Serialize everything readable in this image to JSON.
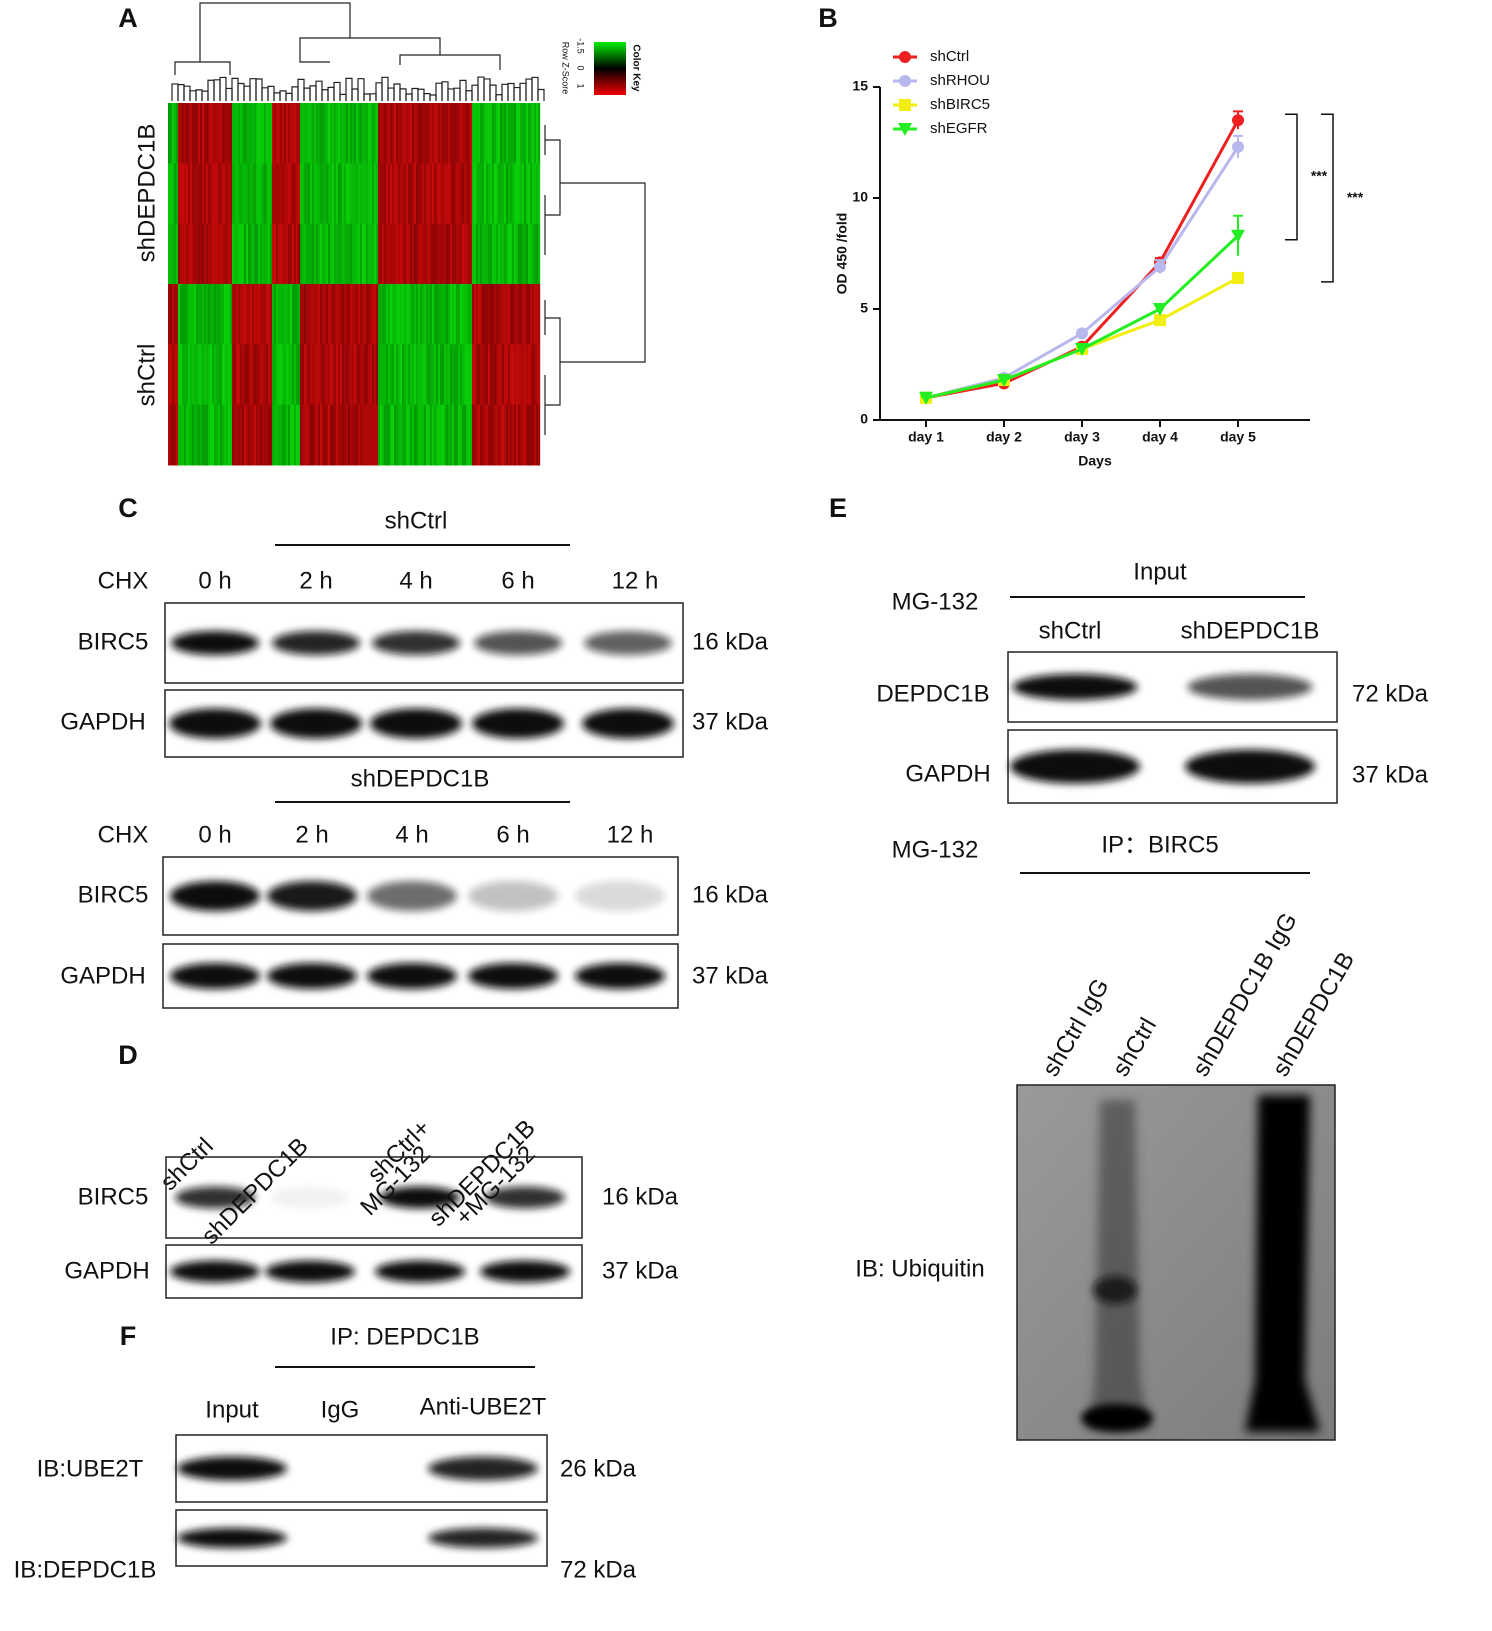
{
  "panel_labels": [
    "A",
    "B",
    "C",
    "D",
    "E",
    "F"
  ],
  "heatmap": {
    "rows": [
      "shDEPDC1B",
      "shCtrl"
    ],
    "color_key": {
      "title": "Color Key",
      "axis_label": "Row Z-Score",
      "ticks": [
        "-1.5",
        "0",
        "1"
      ]
    }
  },
  "chart_data": {
    "type": "line",
    "categories": [
      "day 1",
      "day 2",
      "day 3",
      "day 4",
      "day 5"
    ],
    "x_label": "Days",
    "y_label": "OD 450 /fold",
    "ylim": [
      0,
      15
    ],
    "yticks": [
      0,
      5,
      10,
      15
    ],
    "legend": "top-left",
    "series": [
      {
        "name": "shCtrl",
        "color": "#ee2020",
        "marker": "circle",
        "values": [
          1.0,
          1.65,
          3.3,
          7.1,
          13.5
        ],
        "errors": [
          0.05,
          0.1,
          0.15,
          0.2,
          0.4
        ]
      },
      {
        "name": "shRHOU",
        "color": "#b8b8ee",
        "marker": "circle",
        "values": [
          1.0,
          1.9,
          3.9,
          6.9,
          12.3
        ],
        "errors": [
          0.05,
          0.1,
          0.15,
          0.3,
          0.5
        ]
      },
      {
        "name": "shBIRC5",
        "color": "#f2ee10",
        "marker": "square",
        "values": [
          1.0,
          1.8,
          3.2,
          4.5,
          6.4
        ],
        "errors": [
          0.05,
          0.1,
          0.1,
          0.15,
          0.2
        ]
      },
      {
        "name": "shEGFR",
        "color": "#22ee22",
        "marker": "triangle-down",
        "values": [
          1.0,
          1.8,
          3.2,
          5.0,
          8.3
        ],
        "errors": [
          0.05,
          0.1,
          0.1,
          0.15,
          0.9
        ]
      }
    ],
    "annotations": [
      "***",
      "***"
    ]
  },
  "panel_c": {
    "groups": [
      {
        "title": "shCtrl",
        "treatment": "CHX",
        "timepoints": [
          "0 h",
          "2 h",
          "4 h",
          "6 h",
          "12 h"
        ],
        "rows": [
          {
            "label": "BIRC5",
            "size": "16 kDa"
          },
          {
            "label": "GAPDH",
            "size": "37 kDa"
          }
        ]
      },
      {
        "title": "shDEPDC1B",
        "treatment": "CHX",
        "timepoints": [
          "0 h",
          "2 h",
          "4 h",
          "6 h",
          "12 h"
        ],
        "rows": [
          {
            "label": "BIRC5",
            "size": "16 kDa"
          },
          {
            "label": "GAPDH",
            "size": "37 kDa"
          }
        ]
      }
    ]
  },
  "panel_d": {
    "lanes": [
      [
        "shCtrl"
      ],
      [
        "shDEPDC1B"
      ],
      [
        "shCtrl+",
        "MG-132"
      ],
      [
        "shDEPDC1B",
        "+MG-132"
      ]
    ],
    "rows": [
      {
        "label": "BIRC5",
        "size": "16 kDa"
      },
      {
        "label": "GAPDH",
        "size": "37 kDa"
      }
    ]
  },
  "panel_e": {
    "input": {
      "treatment": "MG-132",
      "title": "Input",
      "lanes": [
        "shCtrl",
        "shDEPDC1B"
      ],
      "rows": [
        {
          "label": "DEPDC1B",
          "size": "72 kDa"
        },
        {
          "label": "GAPDH",
          "size": "37 kDa"
        }
      ]
    },
    "ip": {
      "treatment": "MG-132",
      "title": "IP：BIRC5",
      "lanes": [
        "shCtrl IgG",
        "shCtrl",
        "shDEPDC1B IgG",
        "shDEPDC1B"
      ],
      "blot_label": "IB: Ubiquitin"
    }
  },
  "panel_f": {
    "title": "IP: DEPDC1B",
    "lanes": [
      "Input",
      "IgG",
      "Anti-UBE2T"
    ],
    "rows": [
      {
        "label": "IB:UBE2T",
        "size": "26 kDa"
      },
      {
        "label": "IB:DEPDC1B",
        "size": "72 kDa"
      }
    ]
  }
}
